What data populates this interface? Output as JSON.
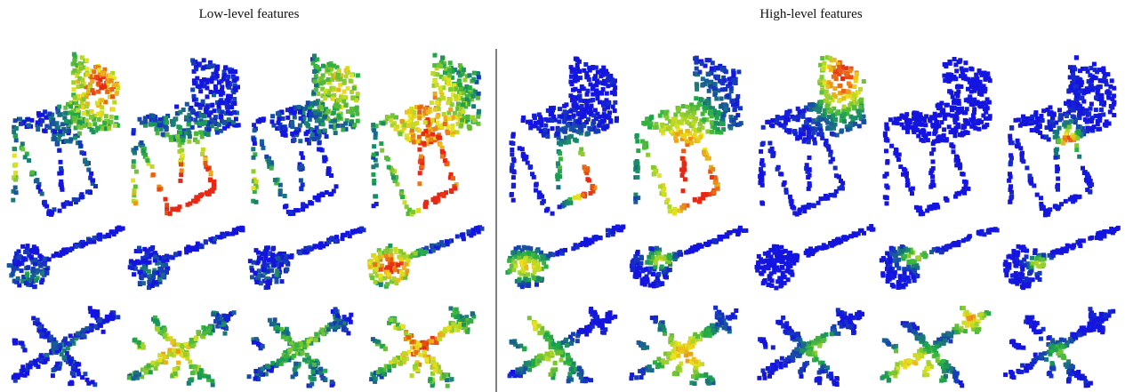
{
  "left_title": "Low-level features",
  "right_title": "High-level features"
}
